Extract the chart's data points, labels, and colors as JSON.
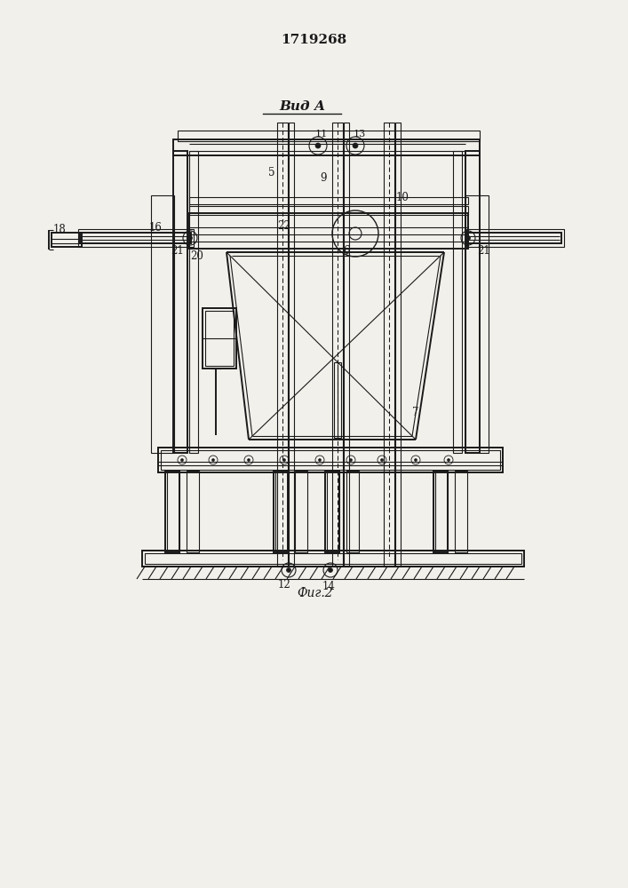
{
  "title": "1719268",
  "view_label": "Вид А",
  "fig_label": "Фиг.2",
  "bg_color": "#f2f0eb",
  "line_color": "#1a1a1a",
  "title_fontsize": 11,
  "annotation_fontsize": 8.5
}
